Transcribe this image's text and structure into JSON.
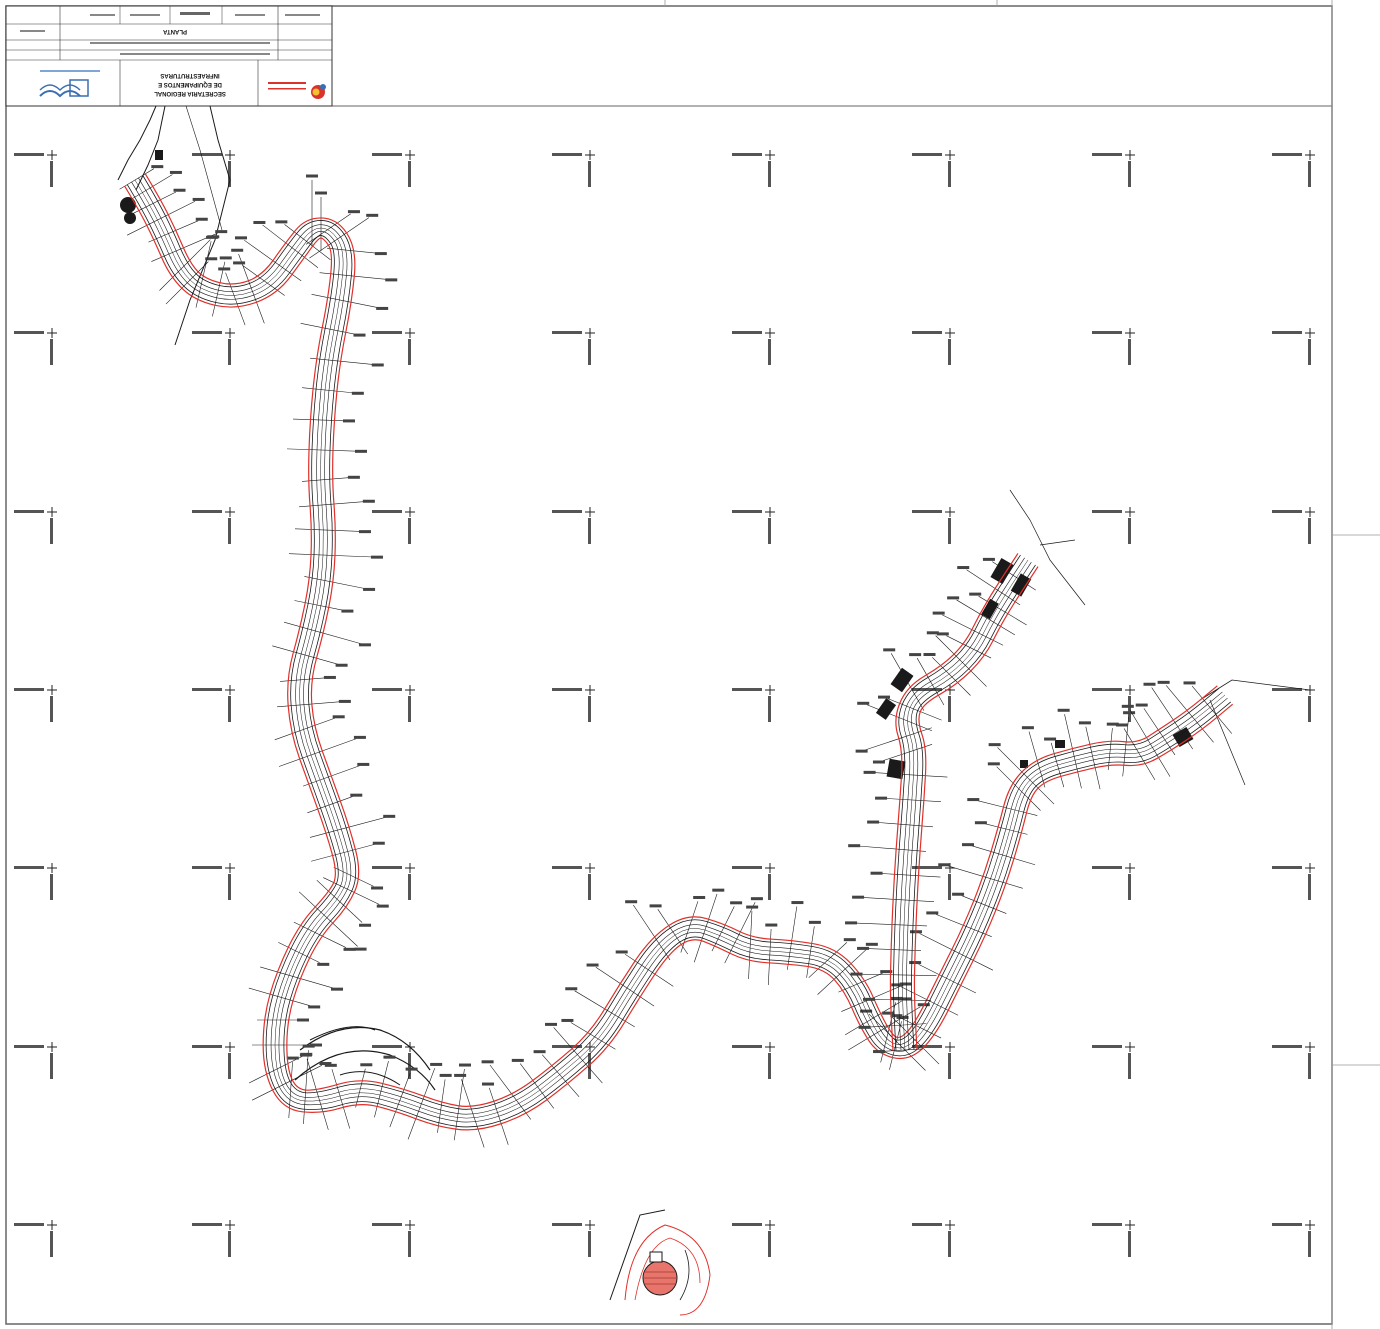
{
  "title_block": {
    "plan_label": "PLANTA",
    "org_line1": "SECRETARIA REGIONAL",
    "org_line2": "DE EQUIPAMENTOS E",
    "org_line3": "INFRAESTRUTURAS"
  },
  "colors": {
    "road_axis": "#e0302a",
    "lines": "#1a1a1a",
    "paper": "#ffffff",
    "frame": "#555555",
    "logo_blue": "#3a6fb0",
    "logo_red": "#d9342b"
  },
  "icons": {
    "grid_cross": "plus-cross-icon",
    "logo_left": "regional-government-logo",
    "logo_right": "ministry-logo"
  }
}
